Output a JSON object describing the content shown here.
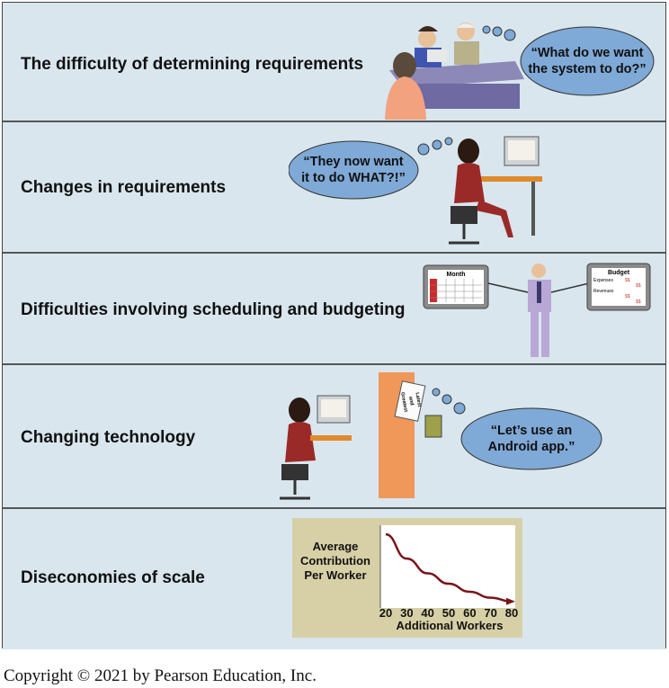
{
  "rows": [
    {
      "label": "The difficulty of determining requirements",
      "bubble": [
        "“What do we want",
        "the system to do?”"
      ]
    },
    {
      "label": "Changes in requirements",
      "bubble": [
        "“They now want",
        "it to do WHAT?!”"
      ]
    },
    {
      "label": "Difficulties involving scheduling and budgeting",
      "month_chart_title": "Month",
      "budget_chart_title": "Budget",
      "budget_rows": [
        "Expenses",
        "Revenues"
      ],
      "budget_cell": "$$"
    },
    {
      "label": "Changing technology",
      "bubble": [
        "“Let’s use an",
        "Android app.”"
      ],
      "paper_text": [
        "Latest",
        "and",
        "Greatest"
      ]
    },
    {
      "label": "Diseconomies of scale"
    }
  ],
  "chart_data": {
    "type": "line",
    "ylabel": [
      "Average",
      "Contribution",
      "Per Worker"
    ],
    "xlabel": "Additional Workers",
    "x_ticks": [
      "20",
      "30",
      "40",
      "50",
      "60",
      "70",
      "80"
    ],
    "x": [
      20,
      30,
      40,
      50,
      60,
      70,
      80
    ],
    "y": [
      0.95,
      0.62,
      0.42,
      0.28,
      0.17,
      0.09,
      0.04
    ],
    "xlim": [
      20,
      80
    ],
    "ylim": [
      0,
      1
    ],
    "grid": false
  },
  "copyright": "Copyright © 2021 by Pearson Education, Inc.",
  "colors": {
    "band_bg": "#d9e6ee",
    "bubble": "#7fa9d6",
    "chart_bg": "#d7d0a6",
    "line": "#7a1418"
  }
}
